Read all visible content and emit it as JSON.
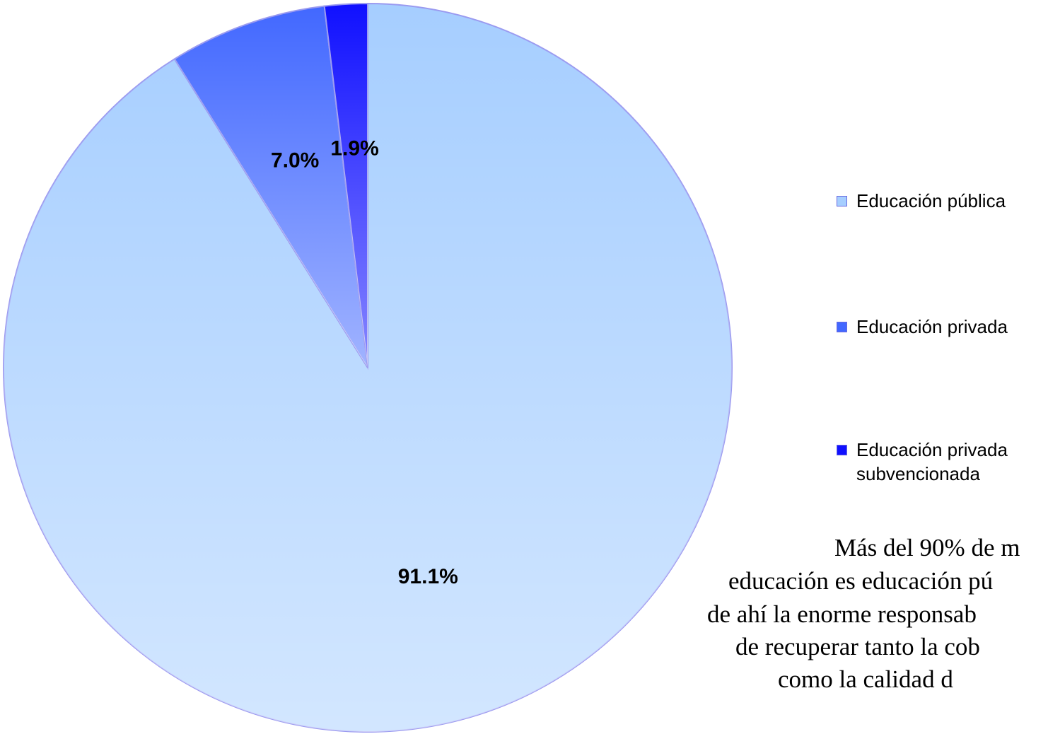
{
  "chart_data": {
    "type": "pie",
    "categories": [
      "Educación pública",
      "Educación privada",
      "Educación privada subvencionada"
    ],
    "values": [
      91.1,
      7.0,
      1.9
    ],
    "value_labels": [
      "91.1%",
      "7.0%",
      "1.9%"
    ],
    "colors": [
      "#a6ceff",
      "#4268ff",
      "#1010ff"
    ],
    "legend": "right",
    "annotation_lines": [
      "Más del 90% de m",
      "educación es educación pú",
      "de ahí la enorme responsab",
      "de recuperar tanto la cob",
      "como la calidad d"
    ]
  }
}
